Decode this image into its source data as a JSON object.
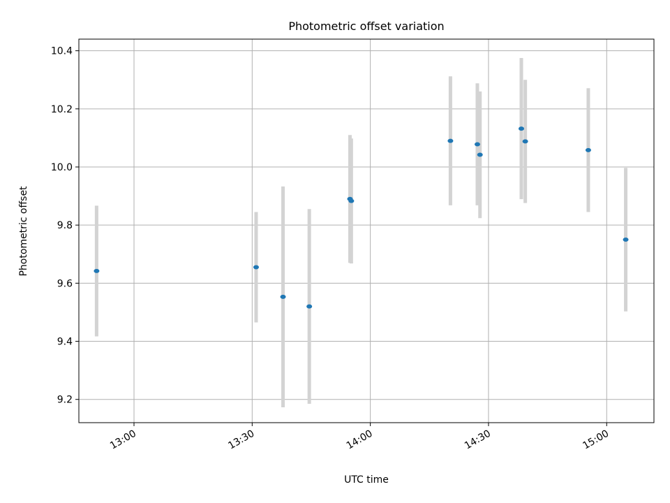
{
  "chart_data": {
    "type": "scatter",
    "title": "Photometric offset variation",
    "xlabel": "UTC time",
    "ylabel": "Photometric offset",
    "x_type": "time",
    "xlim": [
      "12:46",
      "15:12"
    ],
    "ylim": [
      9.12,
      10.44
    ],
    "x_ticks": [
      "13:00",
      "13:30",
      "14:00",
      "14:30",
      "15:00"
    ],
    "y_ticks": [
      9.2,
      9.4,
      9.6,
      9.8,
      10.0,
      10.2,
      10.4
    ],
    "y_tick_labels": [
      "9.2",
      "9.4",
      "9.6",
      "9.8",
      "10.0",
      "10.2",
      "10.4"
    ],
    "grid": true,
    "colors": {
      "point": "#1f77b4",
      "errorbar": "#d3d3d3",
      "grid": "#b0b0b0"
    },
    "series": [
      {
        "points": [
          {
            "x": "12:50:30",
            "y": 9.642,
            "err": 0.225
          },
          {
            "x": "13:31:00",
            "y": 9.655,
            "err": 0.19
          },
          {
            "x": "13:37:50",
            "y": 9.553,
            "err": 0.38
          },
          {
            "x": "13:44:30",
            "y": 9.52,
            "err": 0.335
          },
          {
            "x": "13:54:50",
            "y": 9.89,
            "err": 0.22
          },
          {
            "x": "13:55:10",
            "y": 9.883,
            "err": 0.215
          },
          {
            "x": "14:20:20",
            "y": 10.09,
            "err": 0.222
          },
          {
            "x": "14:27:10",
            "y": 10.078,
            "err": 0.21
          },
          {
            "x": "14:27:50",
            "y": 10.042,
            "err": 0.218
          },
          {
            "x": "14:38:20",
            "y": 10.132,
            "err": 0.243
          },
          {
            "x": "14:39:20",
            "y": 10.088,
            "err": 0.212
          },
          {
            "x": "14:55:20",
            "y": 10.058,
            "err": 0.213
          },
          {
            "x": "15:04:50",
            "y": 9.75,
            "err": 0.247
          }
        ]
      }
    ]
  }
}
